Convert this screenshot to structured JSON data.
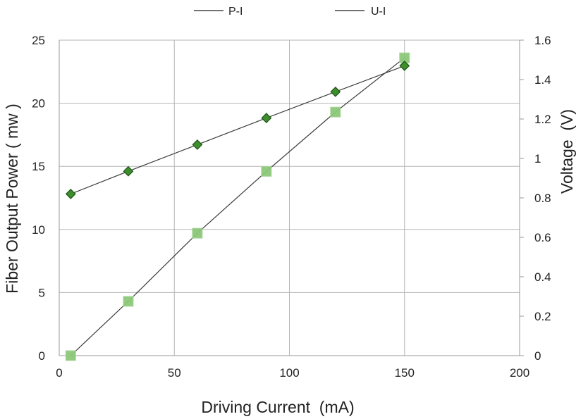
{
  "chart_data": {
    "type": "line",
    "title": "",
    "xlabel": "Driving Current  (mA)",
    "ylabel_left": "Fiber Output Power ( mw )",
    "ylabel_right": "Voltage  (V)",
    "xlim": [
      0,
      200
    ],
    "ylim_left": [
      0,
      25
    ],
    "ylim_right": [
      0,
      1.6
    ],
    "x_ticks": [
      "0",
      "50",
      "100",
      "150",
      "200"
    ],
    "y_left_ticks": [
      "0",
      "5",
      "10",
      "15",
      "20",
      "25"
    ],
    "y_right_ticks": [
      "0",
      "0.2",
      "0.4",
      "0.6",
      "0.8",
      "1",
      "1.2",
      "1.4",
      "1.6"
    ],
    "grid": true,
    "legend_position": "top",
    "series": [
      {
        "name": "P-I",
        "axis": "left",
        "marker": "square",
        "color": "#8dc87a",
        "x": [
          5,
          30,
          60,
          90,
          120,
          150
        ],
        "y": [
          0,
          4.3,
          9.7,
          14.6,
          19.3,
          23.6
        ]
      },
      {
        "name": "U-I",
        "axis": "right",
        "marker": "diamond",
        "color": "#3e8e2e",
        "x": [
          5,
          30,
          60,
          90,
          120,
          150
        ],
        "y": [
          0.82,
          0.935,
          1.07,
          1.205,
          1.338,
          1.47
        ]
      }
    ]
  }
}
